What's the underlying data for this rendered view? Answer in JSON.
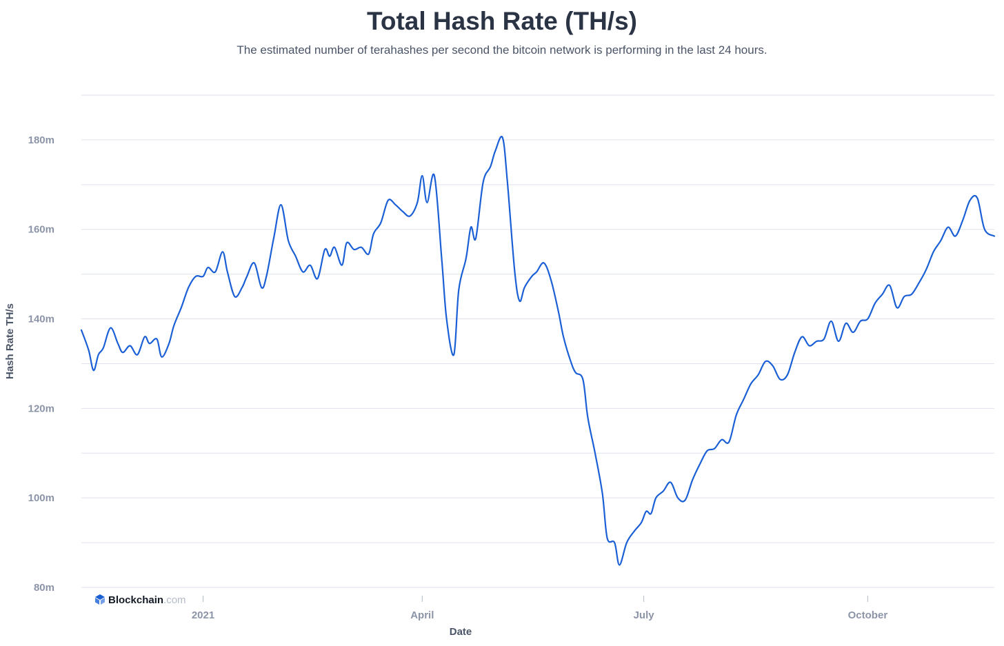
{
  "header": {
    "title": "Total Hash Rate (TH/s)",
    "subtitle": "The estimated number of terahashes per second the bitcoin network is performing in the last 24 hours."
  },
  "brand": {
    "name": "Blockchain",
    "suffix": ".com",
    "icon": "blockchain-logo-icon"
  },
  "colors": {
    "line": "#1a5fd6",
    "grid": "#dde2ec",
    "tick": "#8b94a7",
    "title": "#2b3445"
  },
  "chart_data": {
    "type": "line",
    "title": "Total Hash Rate (TH/s)",
    "xlabel": "Date",
    "ylabel": "Hash Rate TH/s",
    "x_range": [
      "2020-11-12",
      "2021-11-22"
    ],
    "ylim": [
      80000000,
      190000000
    ],
    "yticks": [
      {
        "value": 80000000,
        "label": "80m"
      },
      {
        "value": 100000000,
        "label": "100m"
      },
      {
        "value": 120000000,
        "label": "120m"
      },
      {
        "value": 140000000,
        "label": "140m"
      },
      {
        "value": 160000000,
        "label": "160m"
      },
      {
        "value": 180000000,
        "label": "180m"
      }
    ],
    "xticks": [
      {
        "date": "2021-01-01",
        "label": "2021"
      },
      {
        "date": "2021-04-01",
        "label": "April"
      },
      {
        "date": "2021-07-01",
        "label": "July"
      },
      {
        "date": "2021-10-01",
        "label": "October"
      }
    ],
    "grid": true,
    "legend": "none",
    "series": [
      {
        "x": [
          "2020-11-12",
          "2020-11-15",
          "2020-11-17",
          "2020-11-19",
          "2020-11-21",
          "2020-11-24",
          "2020-11-27",
          "2020-11-29",
          "2020-12-02",
          "2020-12-05",
          "2020-12-08",
          "2020-12-10",
          "2020-12-13",
          "2020-12-15",
          "2020-12-18",
          "2020-12-20",
          "2020-12-23",
          "2020-12-26",
          "2020-12-29",
          "2021-01-01",
          "2021-01-03",
          "2021-01-06",
          "2021-01-09",
          "2021-01-11",
          "2021-01-14",
          "2021-01-17",
          "2021-01-19",
          "2021-01-22",
          "2021-01-25",
          "2021-01-27",
          "2021-01-30",
          "2021-02-02",
          "2021-02-05",
          "2021-02-08",
          "2021-02-11",
          "2021-02-14",
          "2021-02-17",
          "2021-02-20",
          "2021-02-22",
          "2021-02-24",
          "2021-02-27",
          "2021-03-01",
          "2021-03-04",
          "2021-03-07",
          "2021-03-10",
          "2021-03-12",
          "2021-03-15",
          "2021-03-18",
          "2021-03-21",
          "2021-03-24",
          "2021-03-27",
          "2021-03-30",
          "2021-04-01",
          "2021-04-03",
          "2021-04-06",
          "2021-04-09",
          "2021-04-11",
          "2021-04-14",
          "2021-04-16",
          "2021-04-19",
          "2021-04-21",
          "2021-04-23",
          "2021-04-26",
          "2021-04-29",
          "2021-05-01",
          "2021-05-04",
          "2021-05-06",
          "2021-05-09",
          "2021-05-11",
          "2021-05-13",
          "2021-05-16",
          "2021-05-18",
          "2021-05-21",
          "2021-05-24",
          "2021-05-27",
          "2021-05-29",
          "2021-06-01",
          "2021-06-03",
          "2021-06-06",
          "2021-06-08",
          "2021-06-11",
          "2021-06-14",
          "2021-06-16",
          "2021-06-19",
          "2021-06-21",
          "2021-06-24",
          "2021-06-27",
          "2021-06-30",
          "2021-07-02",
          "2021-07-04",
          "2021-07-06",
          "2021-07-09",
          "2021-07-12",
          "2021-07-15",
          "2021-07-18",
          "2021-07-21",
          "2021-07-24",
          "2021-07-27",
          "2021-07-30",
          "2021-08-02",
          "2021-08-05",
          "2021-08-08",
          "2021-08-11",
          "2021-08-14",
          "2021-08-17",
          "2021-08-20",
          "2021-08-23",
          "2021-08-26",
          "2021-08-29",
          "2021-09-01",
          "2021-09-04",
          "2021-09-07",
          "2021-09-10",
          "2021-09-13",
          "2021-09-16",
          "2021-09-19",
          "2021-09-22",
          "2021-09-25",
          "2021-09-28",
          "2021-10-01",
          "2021-10-04",
          "2021-10-07",
          "2021-10-10",
          "2021-10-13",
          "2021-10-16",
          "2021-10-19",
          "2021-10-22",
          "2021-10-25",
          "2021-10-28",
          "2021-10-31",
          "2021-11-03",
          "2021-11-06",
          "2021-11-09",
          "2021-11-12",
          "2021-11-15",
          "2021-11-18",
          "2021-11-22"
        ],
        "y": [
          137500000,
          133000000,
          128500000,
          132000000,
          133500000,
          138000000,
          134500000,
          132500000,
          134000000,
          132000000,
          136000000,
          134500000,
          135500000,
          131500000,
          134500000,
          138500000,
          142500000,
          147000000,
          149500000,
          149500000,
          151500000,
          150500000,
          155000000,
          150500000,
          145000000,
          147000000,
          149500000,
          152500000,
          147000000,
          149500000,
          158000000,
          165500000,
          157500000,
          154000000,
          150500000,
          152000000,
          149000000,
          155500000,
          154000000,
          156000000,
          152000000,
          157000000,
          155500000,
          156000000,
          154500000,
          159000000,
          161500000,
          166500000,
          165500000,
          164000000,
          163000000,
          166000000,
          172000000,
          166000000,
          172000000,
          153500000,
          140000000,
          132000000,
          146500000,
          153500000,
          160500000,
          158000000,
          170500000,
          174000000,
          177500000,
          180500000,
          170500000,
          150500000,
          144000000,
          147000000,
          149500000,
          150500000,
          152500000,
          148500000,
          141500000,
          136000000,
          130500000,
          128000000,
          126500000,
          118000000,
          110000000,
          101000000,
          91000000,
          90000000,
          85000000,
          90000000,
          92500000,
          94500000,
          97000000,
          96500000,
          100000000,
          101500000,
          103500000,
          100000000,
          99500000,
          104000000,
          107500000,
          110500000,
          111000000,
          113000000,
          112500000,
          118500000,
          122000000,
          125500000,
          127500000,
          130500000,
          129500000,
          126500000,
          127500000,
          132500000,
          136000000,
          134000000,
          135000000,
          135500000,
          139500000,
          135000000,
          139000000,
          137000000,
          139500000,
          140000000,
          143500000,
          145500000,
          147500000,
          142500000,
          145000000,
          145500000,
          148000000,
          151000000,
          155000000,
          157500000,
          160500000,
          158500000,
          162000000,
          166500000,
          167000000,
          160000000,
          158500000
        ]
      }
    ]
  },
  "axis": {
    "y_title": "Hash Rate TH/s",
    "x_title": "Date"
  }
}
